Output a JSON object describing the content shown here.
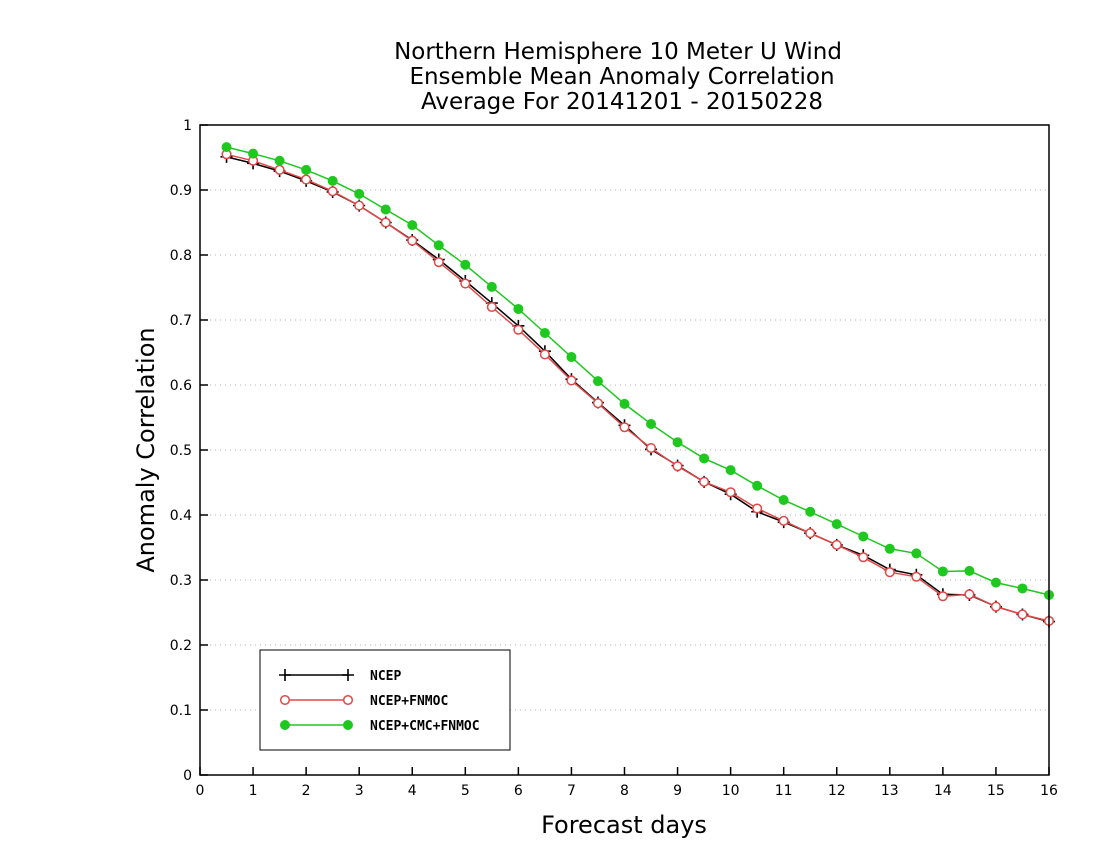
{
  "chart_data": {
    "type": "line",
    "title_lines": [
      "Northern Hemisphere 10 Meter U Wind",
      "Ensemble Mean Anomaly Correlation",
      "Average For 20141201 - 20150228"
    ],
    "xlabel": "Forecast days",
    "ylabel": "Anomaly Correlation",
    "xlim": [
      0,
      16
    ],
    "ylim": [
      0,
      1
    ],
    "x_ticks": [
      "0",
      "1",
      "2",
      "3",
      "4",
      "5",
      "6",
      "7",
      "8",
      "9",
      "10",
      "11",
      "12",
      "13",
      "14",
      "15",
      "16"
    ],
    "y_ticks": [
      "0",
      "0.1",
      "0.2",
      "0.3",
      "0.4",
      "0.5",
      "0.6",
      "0.7",
      "0.8",
      "0.9",
      "1"
    ],
    "grid": true,
    "legend_position": "bottom-left",
    "x": [
      0.5,
      1,
      1.5,
      2,
      2.5,
      3,
      3.5,
      4,
      4.5,
      5,
      5.5,
      6,
      6.5,
      7,
      7.5,
      8,
      8.5,
      9,
      9.5,
      10,
      10.5,
      11,
      11.5,
      12,
      12.5,
      13,
      13.5,
      14,
      14.5,
      15,
      15.5,
      16
    ],
    "series": [
      {
        "name": "NCEP",
        "color": "#000000",
        "marker": "plus",
        "values": [
          0.951,
          0.941,
          0.929,
          0.914,
          0.897,
          0.876,
          0.85,
          0.823,
          0.793,
          0.76,
          0.726,
          0.691,
          0.652,
          0.609,
          0.573,
          0.538,
          0.501,
          0.476,
          0.451,
          0.432,
          0.405,
          0.389,
          0.372,
          0.354,
          0.338,
          0.316,
          0.308,
          0.278,
          0.277,
          0.259,
          0.247,
          0.236
        ]
      },
      {
        "name": "NCEP+FNMOC",
        "color": "#e04848",
        "marker": "open-circle",
        "values": [
          0.955,
          0.945,
          0.931,
          0.916,
          0.898,
          0.876,
          0.85,
          0.822,
          0.789,
          0.756,
          0.72,
          0.685,
          0.647,
          0.607,
          0.572,
          0.535,
          0.503,
          0.475,
          0.451,
          0.435,
          0.41,
          0.391,
          0.372,
          0.354,
          0.335,
          0.312,
          0.305,
          0.275,
          0.278,
          0.259,
          0.247,
          0.237
        ]
      },
      {
        "name": "NCEP+CMC+FNMOC",
        "color": "#1ec81e",
        "marker": "filled-circle",
        "values": [
          0.966,
          0.956,
          0.945,
          0.931,
          0.914,
          0.894,
          0.87,
          0.846,
          0.815,
          0.785,
          0.751,
          0.717,
          0.68,
          0.643,
          0.606,
          0.571,
          0.54,
          0.512,
          0.487,
          0.469,
          0.445,
          0.423,
          0.405,
          0.386,
          0.367,
          0.348,
          0.341,
          0.313,
          0.314,
          0.296,
          0.287,
          0.277
        ]
      }
    ]
  }
}
